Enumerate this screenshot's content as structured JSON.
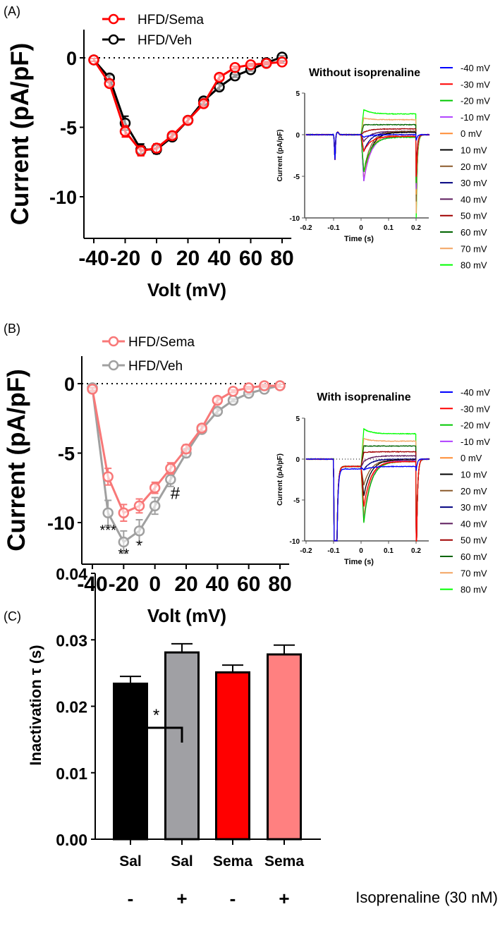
{
  "chart_data": [
    {
      "type": "line",
      "panel_label": "(A)",
      "xlabel": "Volt (mV)",
      "ylabel": "Current (pA/pF)",
      "x": [
        -40,
        -30,
        -20,
        -10,
        0,
        10,
        20,
        30,
        40,
        50,
        60,
        70,
        80
      ],
      "xticks": [
        "-40",
        "-20",
        "0",
        "20",
        "40",
        "60",
        "80"
      ],
      "yticks": [
        "0",
        "-5",
        "-10"
      ],
      "xlim": [
        -43,
        85
      ],
      "ylim": [
        -13,
        2
      ],
      "series": [
        {
          "name": "HFD/Sema",
          "color": "#ff0000",
          "values": [
            -0.15,
            -1.85,
            -5.3,
            -6.7,
            -6.5,
            -5.6,
            -4.5,
            -3.3,
            -1.4,
            -0.7,
            -0.5,
            -0.4,
            -0.3
          ],
          "err": [
            0.1,
            0.2,
            0.4,
            0.35,
            0.3,
            0.2,
            0.2,
            0.2,
            0.2,
            0.1,
            0.1,
            0.1,
            0.1
          ]
        },
        {
          "name": "HFD/Veh",
          "color": "#000000",
          "values": [
            -0.15,
            -1.45,
            -4.7,
            -6.6,
            -6.6,
            -5.7,
            -4.5,
            -3.1,
            -2.1,
            -1.3,
            -0.85,
            -0.35,
            0.05
          ],
          "err": [
            0.1,
            0.2,
            0.5,
            0.4,
            0.3,
            0.2,
            0.2,
            0.2,
            0.2,
            0.1,
            0.1,
            0.1,
            0.1
          ]
        }
      ],
      "annotations": []
    },
    {
      "type": "line",
      "panel_label": "(B)",
      "xlabel": "Volt (mV)",
      "ylabel": "Current (pA/pF)",
      "x": [
        -40,
        -30,
        -20,
        -10,
        0,
        10,
        20,
        30,
        40,
        50,
        60,
        70,
        80
      ],
      "xticks": [
        "-40",
        "-20",
        "0",
        "20",
        "40",
        "60",
        "80"
      ],
      "yticks": [
        "0",
        "-5",
        "-10"
      ],
      "xlim": [
        -43,
        85
      ],
      "ylim": [
        -13,
        2
      ],
      "series": [
        {
          "name": "HFD/Sema",
          "color": "#f87878",
          "values": [
            -0.4,
            -6.7,
            -9.3,
            -8.8,
            -7.5,
            -6.1,
            -4.7,
            -3.2,
            -1.2,
            -0.55,
            -0.3,
            -0.15,
            -0.15
          ],
          "err": [
            0.1,
            0.6,
            0.6,
            0.5,
            0.4,
            0.4,
            0.3,
            0.2,
            0.2,
            0.1,
            0.1,
            0.1,
            0.1
          ]
        },
        {
          "name": "HFD/Veh",
          "color": "#a0a0a0",
          "values": [
            -0.3,
            -9.3,
            -11.4,
            -10.6,
            -8.8,
            -6.9,
            -5.0,
            -3.3,
            -2.0,
            -1.2,
            -0.7,
            -0.4,
            -0.15
          ],
          "err": [
            0.1,
            0.9,
            0.8,
            0.8,
            0.6,
            0.5,
            0.3,
            0.2,
            0.2,
            0.1,
            0.1,
            0.1,
            0.1
          ]
        }
      ],
      "annotations": [
        {
          "text": "***",
          "x": -30,
          "y": -10.9
        },
        {
          "text": "**",
          "x": -20,
          "y": -12.6
        },
        {
          "text": "*",
          "x": -10,
          "y": -12
        },
        {
          "text": "#",
          "x": 13,
          "y": -8.3
        }
      ]
    },
    {
      "type": "line",
      "title": "Without isoprenaline",
      "xlabel": "Time (s)",
      "ylabel": "Current (pA/pF)",
      "xticks": [
        "-0.2",
        "-0.1",
        "0",
        "0.1",
        "0.2"
      ],
      "yticks": [
        "5",
        "0",
        "-5",
        "-10"
      ],
      "xlim": [
        -0.2,
        0.25
      ],
      "ylim": [
        -10,
        5
      ],
      "traces": [
        {
          "name": "-40 mV",
          "color": "#0000ff",
          "peak": -0.3,
          "steady": 0.0,
          "tail": -0.5
        },
        {
          "name": "-30 mV",
          "color": "#ff0000",
          "peak": -2.0,
          "steady": -0.2,
          "tail": -3.5
        },
        {
          "name": "-20 mV",
          "color": "#00c800",
          "peak": -4.5,
          "steady": -0.3,
          "tail": -4.0
        },
        {
          "name": "-10 mV",
          "color": "#b040ff",
          "peak": -5.6,
          "steady": -0.2,
          "tail": -4.5
        },
        {
          "name": "0 mV",
          "color": "#ff8c33",
          "peak": -5.4,
          "steady": 0.0,
          "tail": -5.0
        },
        {
          "name": "10 mV",
          "color": "#000000",
          "peak": -5.5,
          "steady": 0.3,
          "tail": -5.0
        },
        {
          "name": "20 mV",
          "color": "#8b5a2b",
          "peak": -4.5,
          "steady": 0.4,
          "tail": -5.5
        },
        {
          "name": "30 mV",
          "color": "#000080",
          "peak": -2.0,
          "steady": 0.3,
          "tail": -3.0
        },
        {
          "name": "40 mV",
          "color": "#5c1a5c",
          "peak": -0.8,
          "steady": 0.4,
          "tail": -3.5
        },
        {
          "name": "50 mV",
          "color": "#a00000",
          "peak": 0.3,
          "steady": 0.7,
          "tail": -4.0
        },
        {
          "name": "60 mV",
          "color": "#006400",
          "peak": 1.2,
          "steady": 1.2,
          "tail": -5.0
        },
        {
          "name": "70 mV",
          "color": "#f4a460",
          "peak": 2.0,
          "steady": 1.8,
          "tail": -6.5
        },
        {
          "name": "80 mV",
          "color": "#00ff00",
          "peak": 3.0,
          "steady": 2.5,
          "tail": -7.7
        }
      ]
    },
    {
      "type": "line",
      "title": "With isoprenaline",
      "xlabel": "Time (s)",
      "ylabel": "Current (pA/pF)",
      "xticks": [
        "-0.2",
        "-0.1",
        "0",
        "0.1",
        "0.2"
      ],
      "yticks": [
        "5",
        "0",
        "-5",
        "-10"
      ],
      "xlim": [
        -0.2,
        0.25
      ],
      "ylim": [
        -10,
        5
      ],
      "traces": [
        {
          "name": "-40 mV",
          "color": "#0000ff",
          "peak": -1.3,
          "steady": -0.9,
          "tail": -1.0
        },
        {
          "name": "-30 mV",
          "color": "#ff0000",
          "peak": -5.8,
          "steady": -0.3,
          "tail": -10
        },
        {
          "name": "-20 mV",
          "color": "#00c800",
          "peak": -7.8,
          "steady": -0.3,
          "tail": -10
        },
        {
          "name": "-10 mV",
          "color": "#b040ff",
          "peak": -7.6,
          "steady": -0.2,
          "tail": -10
        },
        {
          "name": "0 mV",
          "color": "#ff8c33",
          "peak": -7.0,
          "steady": -0.2,
          "tail": -10
        },
        {
          "name": "10 mV",
          "color": "#000000",
          "peak": -4.5,
          "steady": -0.1,
          "tail": -10
        },
        {
          "name": "20 mV",
          "color": "#8b5a2b",
          "peak": -3.2,
          "steady": -0.1,
          "tail": -10
        },
        {
          "name": "30 mV",
          "color": "#000080",
          "peak": -1.3,
          "steady": 0.0,
          "tail": -10
        },
        {
          "name": "40 mV",
          "color": "#5c1a5c",
          "peak": -0.3,
          "steady": 0.4,
          "tail": -10
        },
        {
          "name": "50 mV",
          "color": "#a00000",
          "peak": 0.8,
          "steady": 0.9,
          "tail": -10
        },
        {
          "name": "60 mV",
          "color": "#006400",
          "peak": 1.6,
          "steady": 1.6,
          "tail": -10
        },
        {
          "name": "70 mV",
          "color": "#f4a460",
          "peak": 2.5,
          "steady": 2.2,
          "tail": -10
        },
        {
          "name": "80 mV",
          "color": "#00ff00",
          "peak": 3.7,
          "steady": 3.1,
          "tail": -10
        }
      ]
    },
    {
      "type": "bar",
      "panel_label": "(C)",
      "ylabel": "Inactivation τ (s)",
      "categories": [
        "Sal",
        "Sal",
        "Sema",
        "Sema"
      ],
      "condition": [
        "-",
        "+",
        "-",
        "+"
      ],
      "condition_label": "Isoprenaline (30 nM)",
      "values": [
        0.0234,
        0.0281,
        0.0251,
        0.0278
      ],
      "err": [
        0.0011,
        0.0013,
        0.0011,
        0.0014
      ],
      "colors": [
        "#000000",
        "#a0a0a4",
        "#ff0000",
        "#ff8080"
      ],
      "yticks": [
        "0.00",
        "0.01",
        "0.02",
        "0.03",
        "0.04"
      ],
      "ylim": [
        0,
        0.04
      ],
      "significance": [
        {
          "between": [
            0,
            1
          ],
          "text": "*"
        }
      ]
    }
  ]
}
